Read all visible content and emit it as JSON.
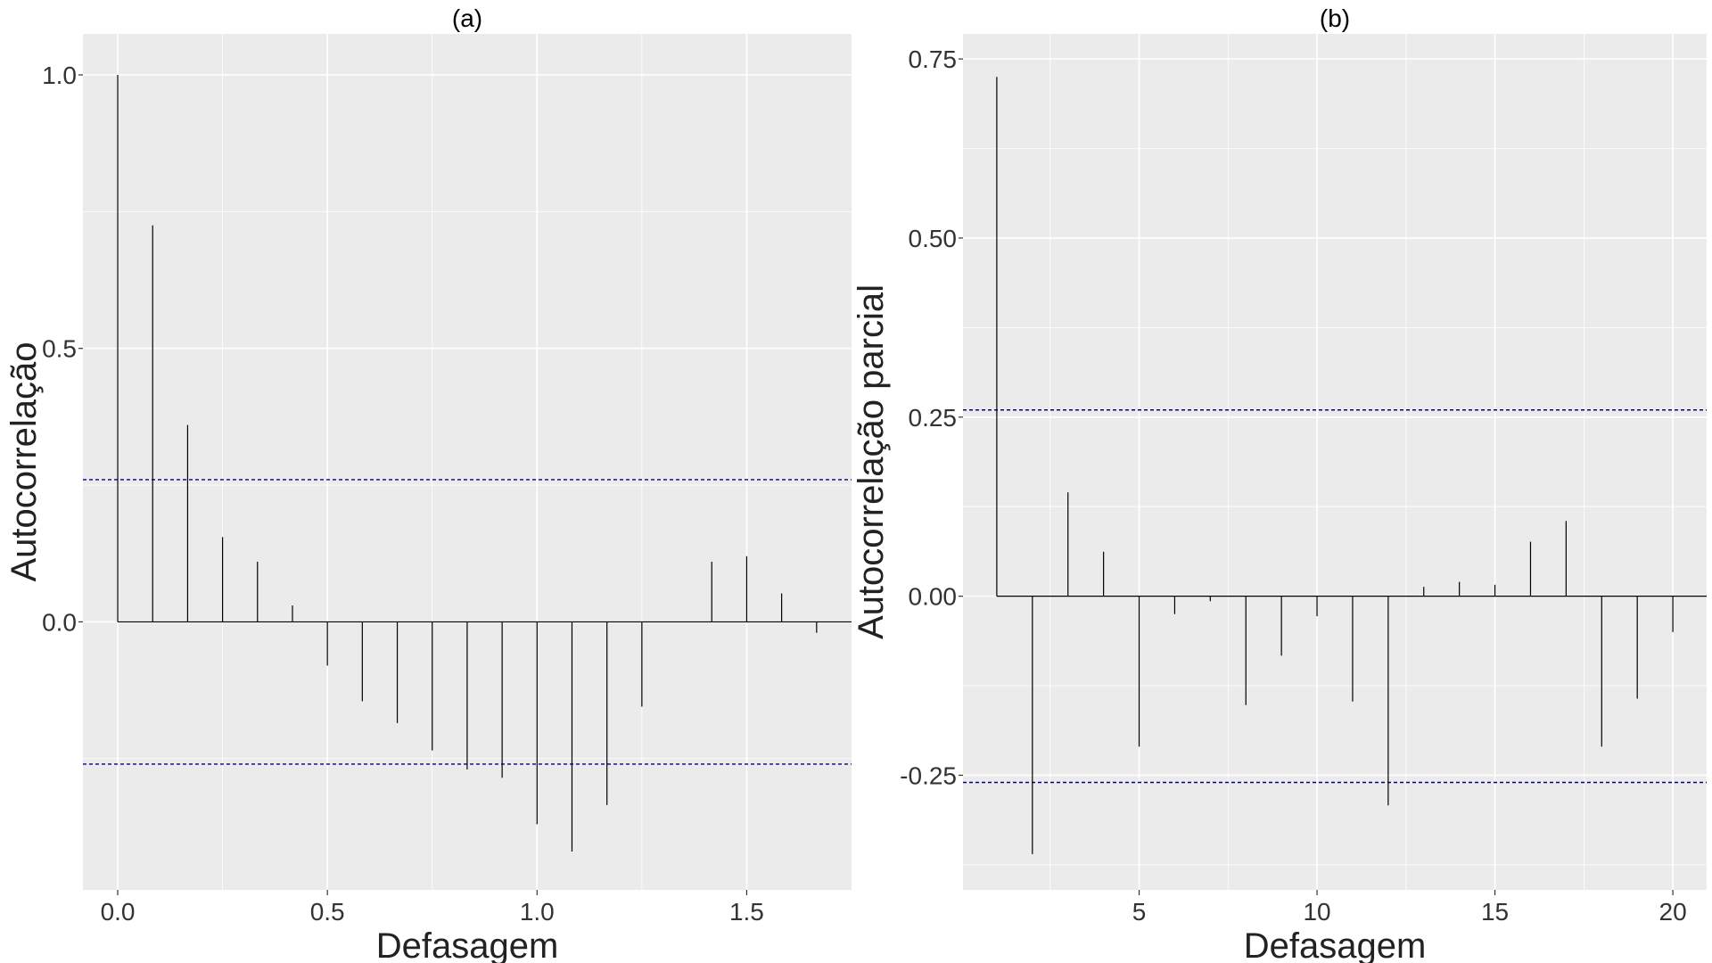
{
  "chart_data": [
    {
      "type": "bar",
      "subtype": "acf-stem",
      "title": "(a)",
      "xlabel": "Defasagem",
      "ylabel": "Autocorrelação",
      "xlim": [
        -0.083,
        1.75
      ],
      "ylim": [
        -0.49,
        1.075
      ],
      "xticks": [
        0.0,
        0.5,
        1.0,
        1.5
      ],
      "xtick_labels": [
        "0.0",
        "0.5",
        "1.0",
        "1.5"
      ],
      "yticks": [
        0.0,
        0.5,
        1.0
      ],
      "ytick_labels": [
        "0.0",
        "0.5",
        "1.0"
      ],
      "x": [
        0.0,
        0.0833,
        0.1667,
        0.25,
        0.3333,
        0.4167,
        0.5,
        0.5833,
        0.6667,
        0.75,
        0.8333,
        0.9167,
        1.0,
        1.0833,
        1.1667,
        1.25,
        1.3333,
        1.4167,
        1.5,
        1.5833,
        1.6667
      ],
      "values": [
        1.0,
        0.725,
        0.36,
        0.155,
        0.11,
        0.03,
        -0.08,
        -0.145,
        -0.185,
        -0.235,
        -0.27,
        -0.285,
        -0.37,
        -0.42,
        -0.335,
        -0.155,
        0.0,
        0.11,
        0.12,
        0.052,
        -0.02
      ],
      "confidence_bounds": [
        0.26,
        -0.26
      ],
      "grid": true,
      "colors": {
        "panel": "#ebebeb",
        "grid": "#ffffff",
        "stem": "#000000",
        "bound": "#00008b"
      }
    },
    {
      "type": "bar",
      "subtype": "pacf-stem",
      "title": "(b)",
      "xlabel": "Defasagem",
      "ylabel": "Autocorrelação parcial",
      "xlim": [
        0.05,
        20.95
      ],
      "ylim": [
        -0.41,
        0.785
      ],
      "xticks": [
        5,
        10,
        15,
        20
      ],
      "xtick_labels": [
        "5",
        "10",
        "15",
        "20"
      ],
      "yticks": [
        -0.25,
        0.0,
        0.25,
        0.5,
        0.75
      ],
      "ytick_labels": [
        "-0.25",
        "0.00",
        "0.25",
        "0.50",
        "0.75"
      ],
      "x": [
        1,
        2,
        3,
        4,
        5,
        6,
        7,
        8,
        9,
        10,
        11,
        12,
        13,
        14,
        15,
        16,
        17,
        18,
        19,
        20
      ],
      "values": [
        0.725,
        -0.36,
        0.145,
        0.062,
        -0.21,
        -0.025,
        -0.007,
        -0.152,
        -0.083,
        -0.028,
        -0.147,
        -0.292,
        0.013,
        0.02,
        0.016,
        0.076,
        0.105,
        -0.21,
        -0.143,
        -0.05
      ],
      "confidence_bounds": [
        0.26,
        -0.26
      ],
      "grid": true,
      "colors": {
        "panel": "#ebebeb",
        "grid": "#ffffff",
        "stem": "#000000",
        "bound": "#00008b"
      }
    }
  ]
}
